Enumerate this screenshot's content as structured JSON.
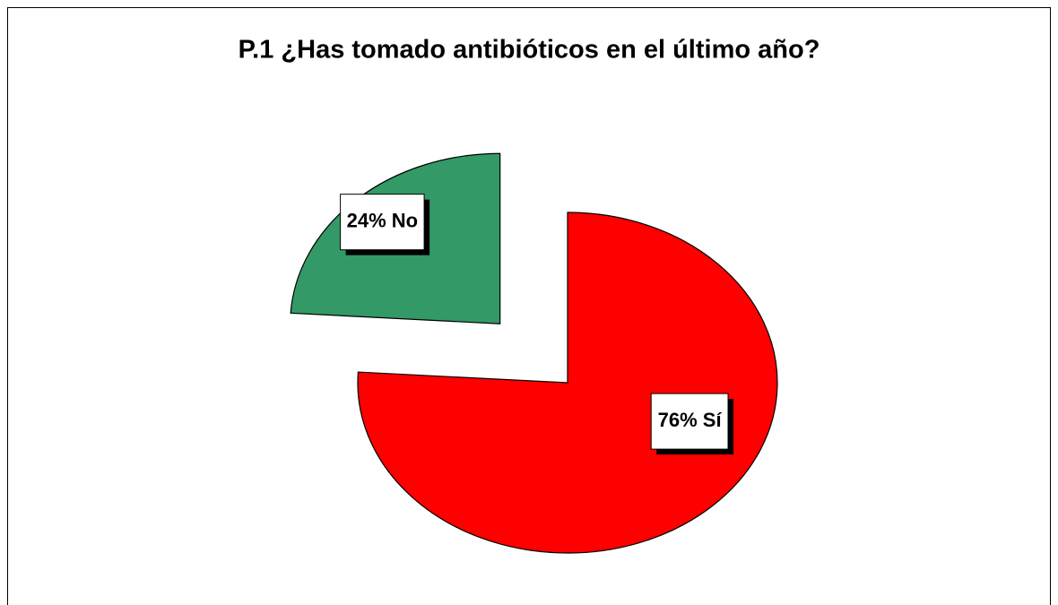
{
  "chart_data": {
    "type": "pie",
    "title": "P.1 ¿Has tomado antibióticos en el último año?",
    "values": [
      76,
      24
    ],
    "value_labels": [
      "76% Sí",
      "24% No"
    ],
    "colors": [
      "#ff0000",
      "#339966"
    ],
    "exploded": [
      false,
      true
    ]
  }
}
